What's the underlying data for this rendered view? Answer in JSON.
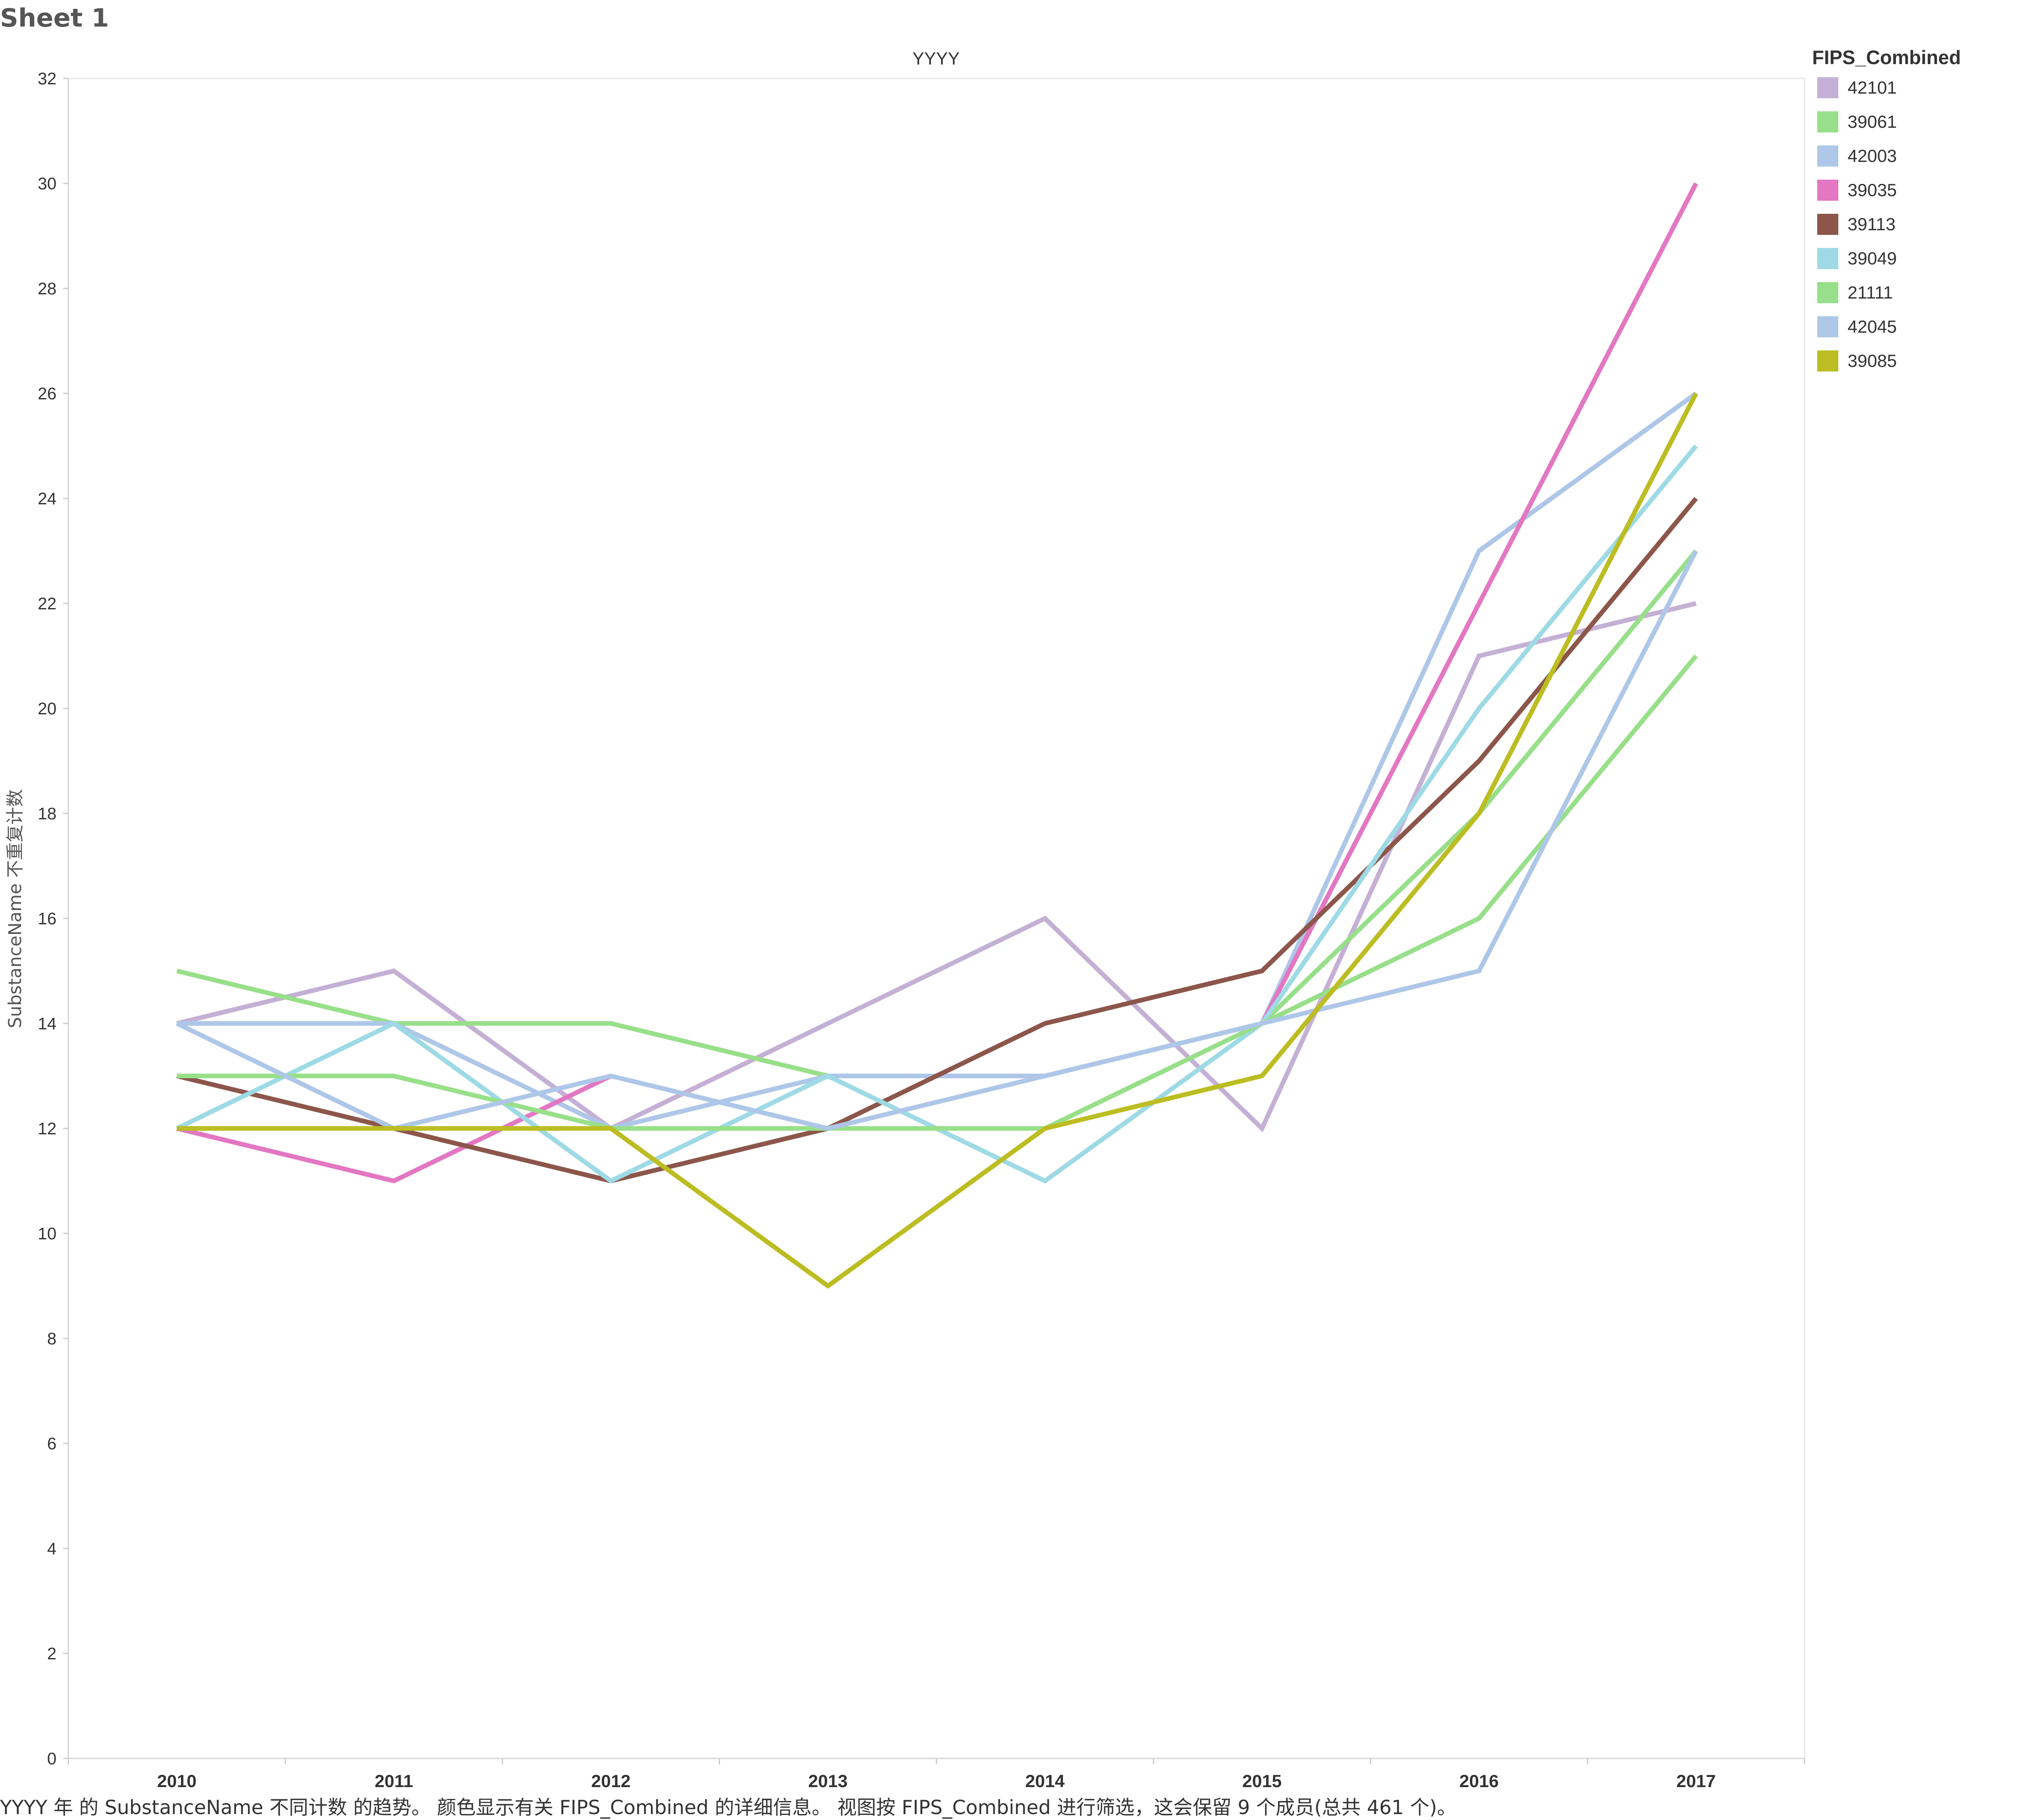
{
  "sheet_title": "Sheet 1",
  "caption": "YYYY 年 的 SubstanceName 不同计数 的趋势。 颜色显示有关 FIPS_Combined 的详细信息。 视图按 FIPS_Combined 进行筛选，这会保留 9 个成员(总共 461 个)。",
  "legend": {
    "title": "FIPS_Combined",
    "items": [
      {
        "label": "42101",
        "color": "#c5b0d5"
      },
      {
        "label": "39061",
        "color": "#98df8a"
      },
      {
        "label": "42003",
        "color": "#aec7e8"
      },
      {
        "label": "39035",
        "color": "#e377c2"
      },
      {
        "label": "39113",
        "color": "#8c564b"
      },
      {
        "label": "39049",
        "color": "#9edae5"
      },
      {
        "label": "21111",
        "color": "#98df8a"
      },
      {
        "label": "42045",
        "color": "#aec7e8"
      },
      {
        "label": "39085",
        "color": "#bcbd22"
      }
    ]
  },
  "chart_data": {
    "type": "line",
    "title": "YYYY",
    "xlabel": "",
    "ylabel": "SubstanceName 不重复计数",
    "x": [
      "2010",
      "2011",
      "2012",
      "2013",
      "2014",
      "2015",
      "2016",
      "2017"
    ],
    "ylim": [
      0,
      32
    ],
    "yticks": [
      0,
      2,
      4,
      6,
      8,
      10,
      12,
      14,
      16,
      18,
      20,
      22,
      24,
      26,
      28,
      30,
      32
    ],
    "grid": false,
    "legend_position": "right",
    "series": [
      {
        "name": "42101",
        "color": "#c5b0d5",
        "values": [
          14,
          15,
          12,
          14,
          16,
          12,
          21,
          22
        ]
      },
      {
        "name": "39061",
        "color": "#98df8a",
        "values": [
          15,
          14,
          14,
          13,
          13,
          14,
          18,
          23
        ]
      },
      {
        "name": "42003",
        "color": "#aec7e8",
        "values": [
          14,
          14,
          12,
          13,
          13,
          14,
          23,
          26
        ]
      },
      {
        "name": "39035",
        "color": "#e377c2",
        "values": [
          12,
          11,
          13,
          null,
          null,
          14,
          22,
          30
        ]
      },
      {
        "name": "39113",
        "color": "#8c564b",
        "values": [
          13,
          12,
          11,
          12,
          14,
          15,
          19,
          24
        ]
      },
      {
        "name": "39049",
        "color": "#9edae5",
        "values": [
          12,
          14,
          11,
          13,
          11,
          14,
          20,
          25
        ]
      },
      {
        "name": "21111",
        "color": "#98df8a",
        "values": [
          13,
          13,
          12,
          12,
          12,
          14,
          16,
          21
        ]
      },
      {
        "name": "42045",
        "color": "#aec7e8",
        "values": [
          14,
          12,
          13,
          12,
          13,
          14,
          15,
          23
        ]
      },
      {
        "name": "39085",
        "color": "#bcbd22",
        "values": [
          12,
          12,
          12,
          9,
          12,
          13,
          18,
          26
        ]
      }
    ]
  }
}
